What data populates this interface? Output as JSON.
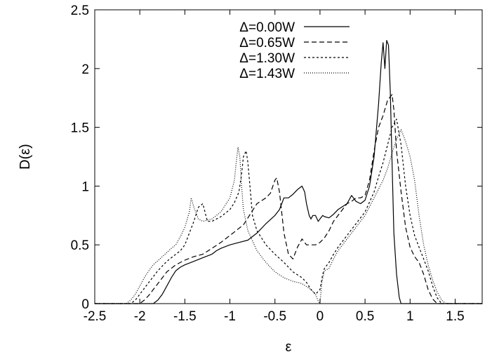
{
  "chart_data": {
    "type": "line",
    "title": "",
    "xlabel": "ε",
    "ylabel": "D(ε)",
    "xlim": [
      -2.5,
      1.8
    ],
    "ylim": [
      0,
      2.5
    ],
    "xticks": [
      -2.5,
      -2,
      -1.5,
      -1,
      -0.5,
      0,
      0.5,
      1,
      1.5
    ],
    "xtick_labels": [
      "-2.5",
      "-2",
      "-1.5",
      "-1",
      "-0.5",
      "0",
      "0.5",
      "1",
      "1.5"
    ],
    "yticks": [
      0,
      0.5,
      1,
      1.5,
      2,
      2.5
    ],
    "ytick_labels": [
      "0",
      "0.5",
      "1",
      "1.5",
      "2",
      "2.5"
    ],
    "grid": false,
    "legend_position": "top-center",
    "series": [
      {
        "name": "Δ=0.00W",
        "dash": "",
        "x": [
          -2.5,
          -1.85,
          -1.8,
          -1.75,
          -1.7,
          -1.65,
          -1.6,
          -1.55,
          -1.5,
          -1.4,
          -1.3,
          -1.2,
          -1.15,
          -1.1,
          -1.0,
          -0.9,
          -0.8,
          -0.7,
          -0.6,
          -0.5,
          -0.45,
          -0.4,
          -0.35,
          -0.3,
          -0.25,
          -0.2,
          -0.17,
          -0.15,
          -0.12,
          -0.1,
          -0.08,
          -0.05,
          -0.02,
          0.0,
          0.03,
          0.05,
          0.1,
          0.15,
          0.2,
          0.3,
          0.35,
          0.4,
          0.45,
          0.5,
          0.55,
          0.6,
          0.65,
          0.68,
          0.7,
          0.72,
          0.74,
          0.76,
          0.78,
          0.8,
          0.82,
          0.85,
          0.88,
          0.9,
          0.93,
          1.0,
          1.8
        ],
        "y": [
          0,
          0,
          0.03,
          0.08,
          0.15,
          0.22,
          0.28,
          0.31,
          0.33,
          0.36,
          0.39,
          0.42,
          0.45,
          0.47,
          0.5,
          0.52,
          0.54,
          0.6,
          0.68,
          0.75,
          0.8,
          0.9,
          0.9,
          0.93,
          0.97,
          1.0,
          0.95,
          0.85,
          0.75,
          0.72,
          0.75,
          0.75,
          0.7,
          0.72,
          0.75,
          0.74,
          0.73,
          0.76,
          0.8,
          0.85,
          0.92,
          0.87,
          0.85,
          0.88,
          1.0,
          1.25,
          1.7,
          2.05,
          2.22,
          2.0,
          2.24,
          2.2,
          1.8,
          1.2,
          0.6,
          0.25,
          0.05,
          0.0,
          0.0,
          0.0,
          0.0
        ]
      },
      {
        "name": "Δ=0.65W",
        "dash": "7,4",
        "x": [
          -2.5,
          -2.0,
          -1.95,
          -1.9,
          -1.85,
          -1.8,
          -1.75,
          -1.7,
          -1.6,
          -1.5,
          -1.4,
          -1.3,
          -1.2,
          -1.1,
          -1.0,
          -0.95,
          -0.9,
          -0.85,
          -0.8,
          -0.7,
          -0.6,
          -0.55,
          -0.5,
          -0.48,
          -0.45,
          -0.4,
          -0.35,
          -0.3,
          -0.25,
          -0.2,
          -0.15,
          -0.1,
          -0.05,
          0.0,
          0.05,
          0.1,
          0.15,
          0.2,
          0.25,
          0.3,
          0.35,
          0.4,
          0.45,
          0.5,
          0.55,
          0.6,
          0.65,
          0.7,
          0.75,
          0.8,
          0.82,
          0.85,
          0.9,
          0.95,
          1.0,
          1.05,
          1.1,
          1.15,
          1.2,
          1.25,
          1.3,
          1.8
        ],
        "y": [
          0,
          0,
          0.03,
          0.07,
          0.12,
          0.17,
          0.22,
          0.27,
          0.33,
          0.37,
          0.4,
          0.42,
          0.47,
          0.52,
          0.58,
          0.61,
          0.64,
          0.67,
          0.73,
          0.85,
          0.9,
          0.94,
          1.05,
          1.07,
          0.95,
          0.6,
          0.42,
          0.38,
          0.48,
          0.55,
          0.5,
          0.5,
          0.5,
          0.52,
          0.56,
          0.62,
          0.7,
          0.75,
          0.8,
          0.85,
          0.87,
          0.9,
          0.9,
          0.92,
          1.05,
          1.3,
          1.5,
          1.6,
          1.73,
          1.78,
          1.65,
          1.3,
          0.95,
          0.65,
          0.48,
          0.4,
          0.35,
          0.25,
          0.12,
          0.04,
          0.0,
          0.0
        ]
      },
      {
        "name": "Δ=1.30W",
        "dash": "3,3",
        "x": [
          -2.5,
          -2.1,
          -2.05,
          -2.0,
          -1.95,
          -1.9,
          -1.85,
          -1.8,
          -1.7,
          -1.6,
          -1.55,
          -1.5,
          -1.45,
          -1.4,
          -1.35,
          -1.3,
          -1.25,
          -1.2,
          -1.1,
          -1.0,
          -0.95,
          -0.9,
          -0.87,
          -0.85,
          -0.82,
          -0.8,
          -0.75,
          -0.7,
          -0.6,
          -0.5,
          -0.4,
          -0.3,
          -0.2,
          -0.15,
          -0.1,
          -0.05,
          0.0,
          0.03,
          0.05,
          0.1,
          0.15,
          0.2,
          0.3,
          0.4,
          0.5,
          0.6,
          0.65,
          0.7,
          0.75,
          0.8,
          0.85,
          0.9,
          0.95,
          1.0,
          1.05,
          1.1,
          1.15,
          1.2,
          1.25,
          1.3,
          1.35,
          1.8
        ],
        "y": [
          0,
          0,
          0.03,
          0.08,
          0.13,
          0.18,
          0.23,
          0.28,
          0.36,
          0.42,
          0.45,
          0.5,
          0.6,
          0.7,
          0.82,
          0.85,
          0.7,
          0.7,
          0.74,
          0.8,
          0.86,
          0.95,
          1.1,
          1.25,
          1.3,
          1.2,
          0.75,
          0.62,
          0.5,
          0.42,
          0.35,
          0.27,
          0.22,
          0.18,
          0.12,
          0.08,
          0.12,
          0.25,
          0.3,
          0.35,
          0.42,
          0.48,
          0.58,
          0.68,
          0.78,
          0.95,
          1.08,
          1.2,
          1.35,
          1.5,
          1.57,
          1.35,
          1.0,
          0.75,
          0.58,
          0.48,
          0.38,
          0.28,
          0.15,
          0.05,
          0.0,
          0.0
        ]
      },
      {
        "name": "Δ=1.43W",
        "dash": "1,2",
        "x": [
          -2.5,
          -2.15,
          -2.1,
          -2.05,
          -2.0,
          -1.95,
          -1.9,
          -1.85,
          -1.75,
          -1.65,
          -1.6,
          -1.55,
          -1.5,
          -1.45,
          -1.43,
          -1.4,
          -1.35,
          -1.3,
          -1.2,
          -1.1,
          -1.0,
          -0.95,
          -0.93,
          -0.91,
          -0.89,
          -0.87,
          -0.85,
          -0.8,
          -0.7,
          -0.6,
          -0.5,
          -0.4,
          -0.3,
          -0.2,
          -0.1,
          -0.05,
          -0.02,
          0.0,
          0.02,
          0.05,
          0.1,
          0.15,
          0.2,
          0.3,
          0.4,
          0.5,
          0.6,
          0.7,
          0.75,
          0.8,
          0.85,
          0.9,
          0.95,
          1.0,
          1.05,
          1.1,
          1.15,
          1.2,
          1.25,
          1.3,
          1.35,
          1.4,
          1.8
        ],
        "y": [
          0,
          0,
          0.03,
          0.08,
          0.15,
          0.22,
          0.28,
          0.33,
          0.4,
          0.47,
          0.5,
          0.57,
          0.65,
          0.78,
          0.9,
          0.82,
          0.72,
          0.7,
          0.72,
          0.78,
          0.9,
          1.05,
          1.2,
          1.33,
          1.25,
          1.0,
          0.8,
          0.62,
          0.45,
          0.35,
          0.27,
          0.22,
          0.19,
          0.17,
          0.12,
          0.08,
          0.02,
          0.0,
          0.18,
          0.28,
          0.3,
          0.38,
          0.45,
          0.55,
          0.65,
          0.75,
          0.9,
          1.05,
          1.15,
          1.28,
          1.4,
          1.48,
          1.38,
          1.25,
          1.05,
          0.75,
          0.5,
          0.33,
          0.2,
          0.1,
          0.03,
          0.0,
          0.0
        ]
      }
    ]
  }
}
